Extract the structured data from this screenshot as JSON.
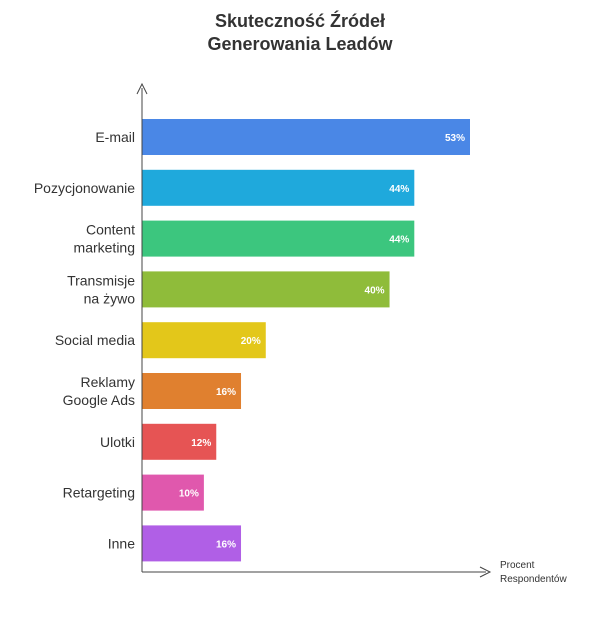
{
  "chart_data": {
    "type": "bar",
    "orientation": "horizontal",
    "title_lines": [
      "Skuteczność Źródeł",
      "Generowania Leadów"
    ],
    "xlabel_lines": [
      "Procent",
      "Respondentów"
    ],
    "ylabel": "",
    "categories": [
      [
        "E-mail"
      ],
      [
        "Pozycjonowanie"
      ],
      [
        "Content",
        "marketing"
      ],
      [
        "Transmisje",
        "na żywo"
      ],
      [
        "Social media"
      ],
      [
        "Reklamy",
        "Google Ads"
      ],
      [
        "Ulotki"
      ],
      [
        "Retargeting"
      ],
      [
        "Inne"
      ]
    ],
    "values": [
      53,
      44,
      44,
      40,
      20,
      16,
      12,
      10,
      16
    ],
    "value_labels": [
      "53%",
      "44%",
      "44%",
      "40%",
      "20%",
      "16%",
      "12%",
      "10%",
      "16%"
    ],
    "colors": [
      "#4a87e6",
      "#1fa9dc",
      "#3cc67e",
      "#8fbc3a",
      "#e3c71a",
      "#e0802f",
      "#e65454",
      "#e058ad",
      "#b05fe6"
    ],
    "xlim": [
      0,
      53
    ],
    "grid": false,
    "legend": "none"
  }
}
